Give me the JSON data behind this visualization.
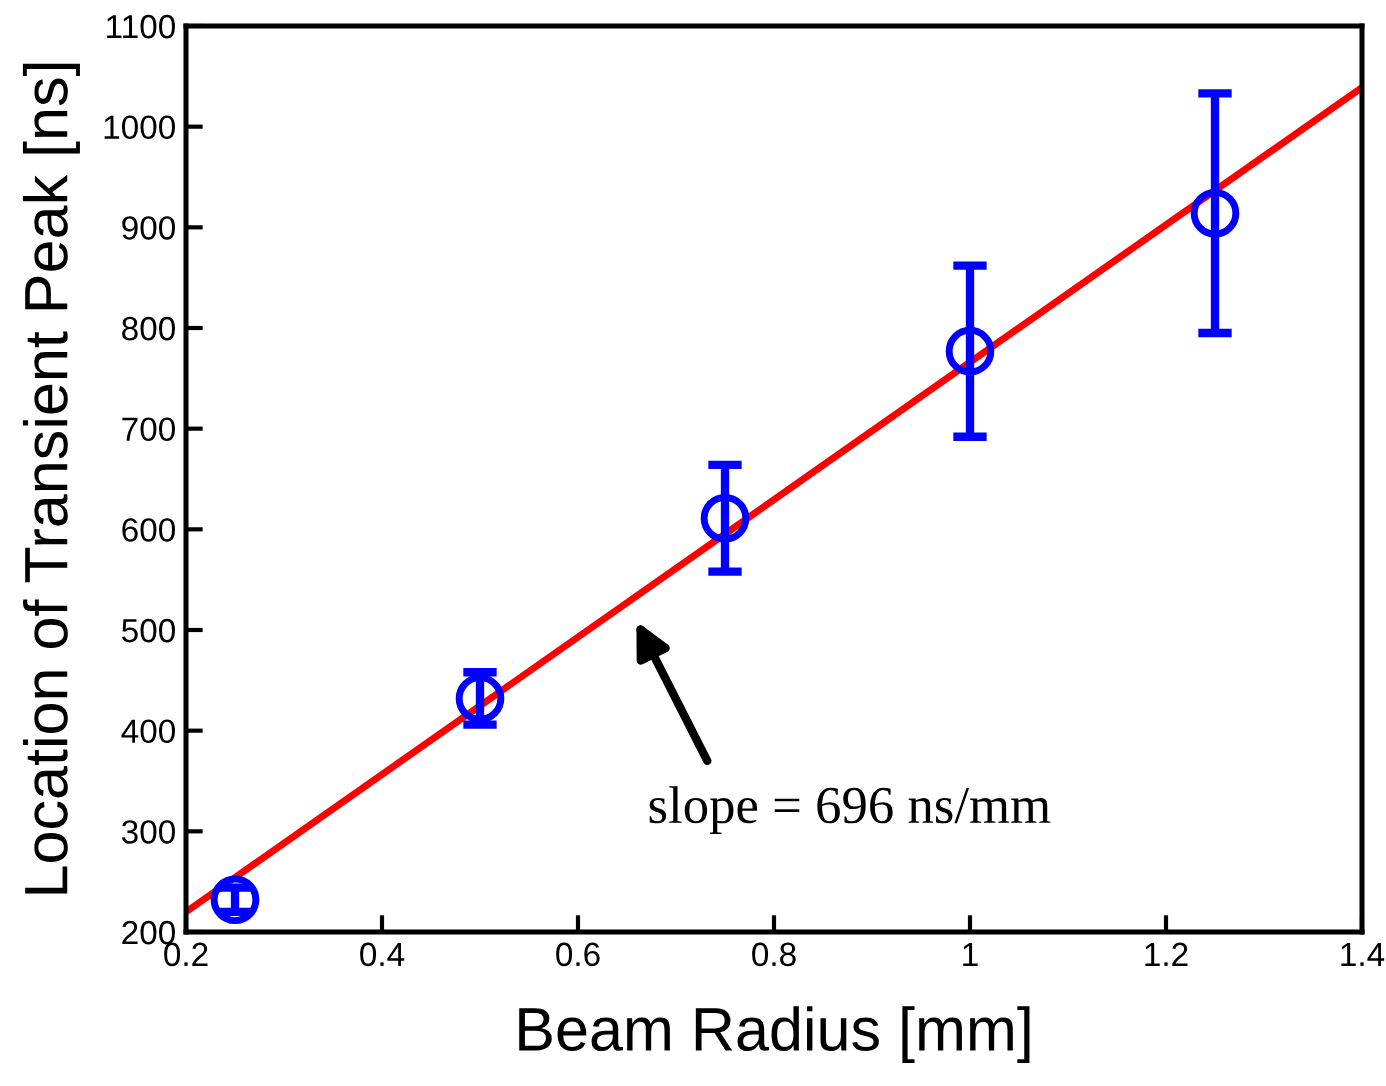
{
  "chart_data": {
    "type": "scatter",
    "xlabel": "Beam Radius [mm]",
    "ylabel": "Location of Transient Peak [ns]",
    "xlim": [
      0.2,
      1.4
    ],
    "xticks": [
      0.2,
      0.4,
      0.6,
      0.8,
      1,
      1.2,
      1.4
    ],
    "ylim": [
      200,
      1100
    ],
    "yticks": [
      200,
      300,
      400,
      500,
      600,
      700,
      800,
      900,
      1000,
      1100
    ],
    "grid": false,
    "series": [
      {
        "marker": "circle",
        "color": "#0000ff",
        "x": [
          0.25,
          0.5,
          0.75,
          1.0,
          1.25
        ],
        "values": [
          232,
          432,
          611,
          777,
          914
        ],
        "errors": [
          12,
          26,
          53,
          85,
          119
        ]
      },
      {
        "type": "line",
        "color": "#ff0000",
        "line_style": "solid",
        "x": [
          0.2,
          1.4
        ],
        "values": [
          220,
          1039
        ]
      }
    ],
    "annotations": [
      "slope = 696 ns/mm"
    ]
  }
}
